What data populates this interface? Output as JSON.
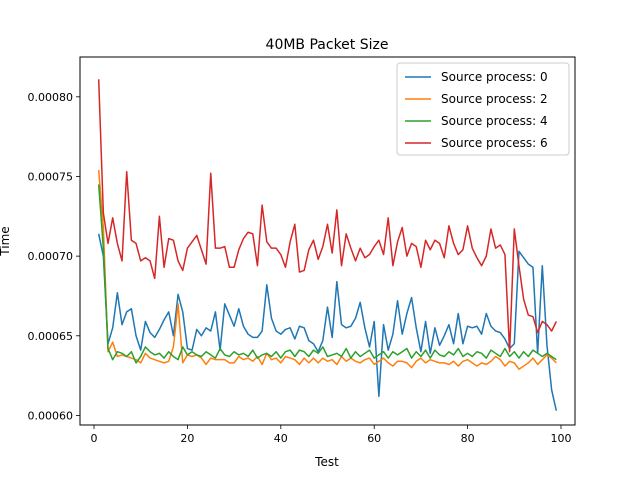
{
  "chart_data": {
    "type": "line",
    "title": "40MB Packet Size",
    "xlabel": "Test",
    "ylabel": "Time",
    "xlim": [
      -3,
      103
    ],
    "ylim": [
      0.000594,
      0.000825
    ],
    "xticks": [
      0,
      20,
      40,
      60,
      80,
      100
    ],
    "xtick_labels": [
      "0",
      "20",
      "40",
      "60",
      "80",
      "100"
    ],
    "yticks": [
      0.0006,
      0.00065,
      0.0007,
      0.00075,
      0.0008
    ],
    "ytick_labels": [
      "0.00060",
      "0.00065",
      "0.00070",
      "0.00075",
      "0.00080"
    ],
    "grid": false,
    "legend_position": "top-right",
    "x_start": 1,
    "series": [
      {
        "name": "Source process: 0",
        "color": "#1f77b4",
        "values": [
          0.000714,
          0.0007,
          0.000645,
          0.000655,
          0.000677,
          0.000657,
          0.000665,
          0.000667,
          0.00065,
          0.000641,
          0.000659,
          0.000652,
          0.000649,
          0.000654,
          0.00066,
          0.000665,
          0.00065,
          0.000676,
          0.000665,
          0.000642,
          0.000641,
          0.000654,
          0.00065,
          0.000655,
          0.000653,
          0.000665,
          0.000641,
          0.00067,
          0.000663,
          0.000656,
          0.000667,
          0.000656,
          0.000651,
          0.000649,
          0.000649,
          0.000653,
          0.000682,
          0.000661,
          0.000653,
          0.000651,
          0.000654,
          0.000655,
          0.000648,
          0.000656,
          0.000655,
          0.000647,
          0.000645,
          0.00064,
          0.000647,
          0.000668,
          0.000649,
          0.000684,
          0.000657,
          0.000655,
          0.000656,
          0.000661,
          0.000671,
          0.000655,
          0.000643,
          0.000659,
          0.000612,
          0.000657,
          0.000641,
          0.000651,
          0.000672,
          0.000651,
          0.000664,
          0.000674,
          0.000655,
          0.00064,
          0.000659,
          0.000639,
          0.000655,
          0.000644,
          0.00065,
          0.000657,
          0.000645,
          0.000664,
          0.000645,
          0.000656,
          0.000655,
          0.000656,
          0.000651,
          0.000664,
          0.000656,
          0.000653,
          0.000652,
          0.000648,
          0.000642,
          0.000645,
          0.000703,
          0.000699,
          0.000695,
          0.000693,
          0.000639,
          0.000694,
          0.000644,
          0.000616,
          0.000603
        ]
      },
      {
        "name": "Source process: 2",
        "color": "#ff7f0e",
        "values": [
          0.000754,
          0.000718,
          0.00064,
          0.000646,
          0.000637,
          0.000638,
          0.000637,
          0.000636,
          0.000635,
          0.000633,
          0.000639,
          0.000636,
          0.000635,
          0.000634,
          0.000633,
          0.000634,
          0.000643,
          0.00067,
          0.000633,
          0.000638,
          0.000637,
          0.000638,
          0.000636,
          0.000632,
          0.000636,
          0.000635,
          0.000635,
          0.000635,
          0.000633,
          0.000633,
          0.000637,
          0.000635,
          0.000636,
          0.000634,
          0.000637,
          0.000632,
          0.000639,
          0.000635,
          0.000636,
          0.000633,
          0.000637,
          0.000636,
          0.000635,
          0.000632,
          0.000636,
          0.000633,
          0.000636,
          0.000633,
          0.000636,
          0.000634,
          0.000635,
          0.000632,
          0.000637,
          0.000634,
          0.000636,
          0.000634,
          0.000633,
          0.000635,
          0.000636,
          0.000632,
          0.000634,
          0.000636,
          0.000633,
          0.000631,
          0.000634,
          0.000634,
          0.000633,
          0.00063,
          0.000634,
          0.000636,
          0.000633,
          0.000635,
          0.000634,
          0.000633,
          0.000633,
          0.000632,
          0.000634,
          0.000631,
          0.000634,
          0.000635,
          0.000633,
          0.000631,
          0.000633,
          0.000632,
          0.000634,
          0.000637,
          0.000635,
          0.000631,
          0.000634,
          0.000633,
          0.000629,
          0.000631,
          0.000633,
          0.000636,
          0.000632,
          0.000635,
          0.000638,
          0.000636,
          0.000633
        ]
      },
      {
        "name": "Source process: 4",
        "color": "#2ca02c",
        "values": [
          0.000745,
          0.000705,
          0.000642,
          0.000635,
          0.00064,
          0.000639,
          0.000637,
          0.00064,
          0.000633,
          0.000637,
          0.000643,
          0.00064,
          0.000638,
          0.000639,
          0.000636,
          0.00064,
          0.000637,
          0.000635,
          0.000643,
          0.000638,
          0.00064,
          0.000638,
          0.000637,
          0.00064,
          0.000638,
          0.000636,
          0.000642,
          0.000638,
          0.000637,
          0.00064,
          0.000638,
          0.000639,
          0.000637,
          0.000641,
          0.000636,
          0.000638,
          0.000639,
          0.000637,
          0.00064,
          0.000636,
          0.00064,
          0.000641,
          0.000637,
          0.000641,
          0.00064,
          0.000637,
          0.000641,
          0.000639,
          0.000643,
          0.000637,
          0.000638,
          0.000639,
          0.000637,
          0.000642,
          0.000636,
          0.00064,
          0.000637,
          0.000639,
          0.000641,
          0.000636,
          0.000638,
          0.00064,
          0.000636,
          0.00064,
          0.000638,
          0.00064,
          0.000642,
          0.000636,
          0.00064,
          0.000637,
          0.000641,
          0.000636,
          0.000641,
          0.000638,
          0.000637,
          0.00064,
          0.000638,
          0.000642,
          0.000637,
          0.000639,
          0.000637,
          0.00064,
          0.000639,
          0.000636,
          0.000641,
          0.000639,
          0.000637,
          0.000642,
          0.000637,
          0.00064,
          0.000636,
          0.00064,
          0.000637,
          0.000641,
          0.000639,
          0.000637,
          0.000639,
          0.000637,
          0.000635
        ]
      },
      {
        "name": "Source process: 6",
        "color": "#d62728",
        "values": [
          0.000811,
          0.000727,
          0.000708,
          0.000724,
          0.000708,
          0.000697,
          0.000753,
          0.00071,
          0.000708,
          0.000697,
          0.000699,
          0.000697,
          0.000686,
          0.000725,
          0.000693,
          0.000711,
          0.00071,
          0.000697,
          0.000691,
          0.000705,
          0.000709,
          0.000713,
          0.000704,
          0.000695,
          0.000752,
          0.000705,
          0.000705,
          0.000706,
          0.000693,
          0.000693,
          0.000704,
          0.000711,
          0.000715,
          0.000714,
          0.000694,
          0.000732,
          0.000709,
          0.000705,
          0.000705,
          0.000701,
          0.000693,
          0.000709,
          0.00072,
          0.00069,
          0.000691,
          0.000704,
          0.00071,
          0.000698,
          0.000706,
          0.00072,
          0.000702,
          0.000729,
          0.000694,
          0.000714,
          0.000705,
          0.000697,
          0.000705,
          0.000699,
          0.000701,
          0.000706,
          0.00071,
          0.000701,
          0.000724,
          0.000694,
          0.000709,
          0.000718,
          0.0007,
          0.000708,
          0.000706,
          0.000693,
          0.00071,
          0.000704,
          0.00071,
          0.000708,
          0.000699,
          0.000719,
          0.000708,
          0.000701,
          0.000704,
          0.000719,
          0.000705,
          0.000699,
          0.000694,
          0.0007,
          0.000717,
          0.000705,
          0.000707,
          0.000701,
          0.00064,
          0.000717,
          0.000694,
          0.000673,
          0.000663,
          0.000662,
          0.000652,
          0.000659,
          0.000657,
          0.000653,
          0.000659
        ]
      }
    ]
  }
}
